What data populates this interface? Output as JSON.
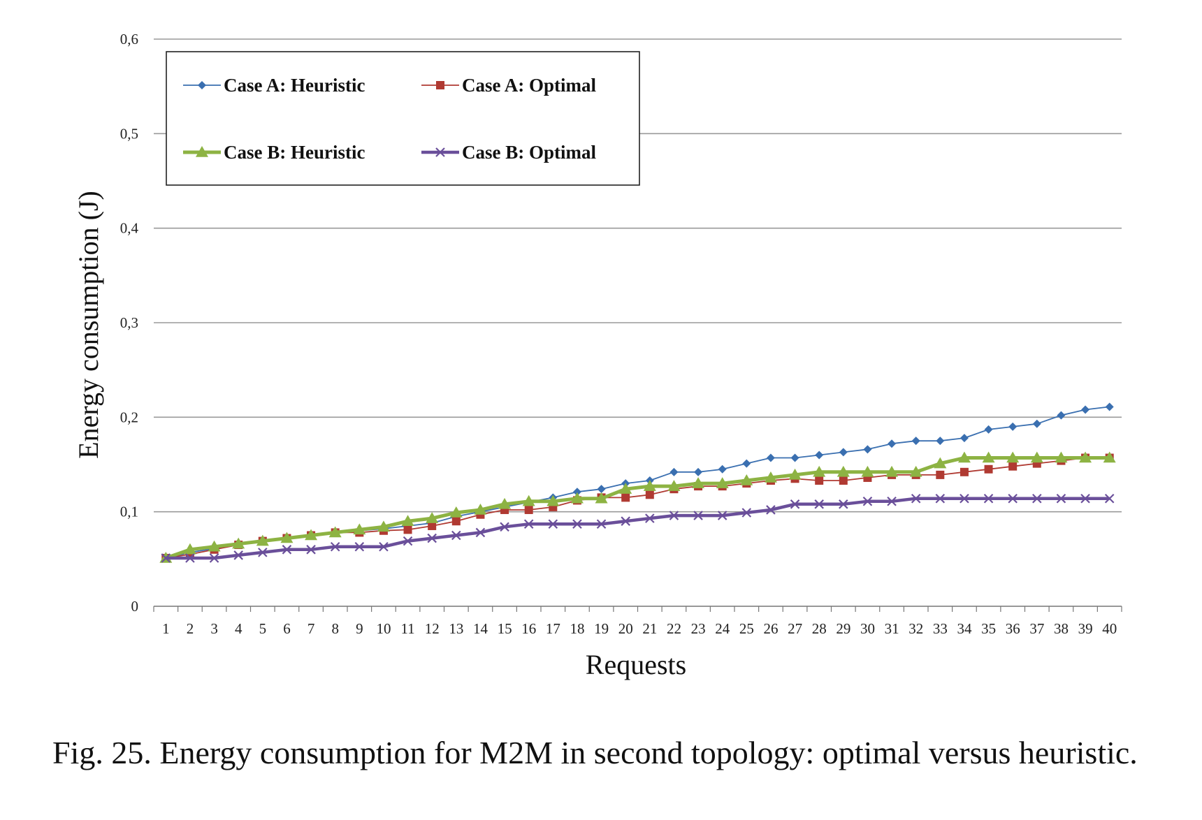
{
  "caption": "Fig. 25. Energy consumption for M2M in second topology: optimal versus heuristic.",
  "chart_data": {
    "type": "line",
    "title": "",
    "xlabel": "Requests",
    "ylabel": "Energy consumption (J)",
    "x": [
      1,
      2,
      3,
      4,
      5,
      6,
      7,
      8,
      9,
      10,
      11,
      12,
      13,
      14,
      15,
      16,
      17,
      18,
      19,
      20,
      21,
      22,
      23,
      24,
      25,
      26,
      27,
      28,
      29,
      30,
      31,
      32,
      33,
      34,
      35,
      36,
      37,
      38,
      39,
      40
    ],
    "ylim": [
      0,
      0.6
    ],
    "yticks": [
      0,
      0.1,
      0.2,
      0.3,
      0.4,
      0.5,
      0.6
    ],
    "ytick_labels": [
      "0",
      "0,1",
      "0,2",
      "0,3",
      "0,4",
      "0,5",
      "0,6"
    ],
    "grid": "horizontal",
    "legend_position": "top-left",
    "series": [
      {
        "name": "Case A: Heuristic",
        "color": "#3a6fb0",
        "marker": "diamond",
        "values": [
          0.051,
          0.057,
          0.061,
          0.066,
          0.069,
          0.072,
          0.075,
          0.078,
          0.08,
          0.082,
          0.085,
          0.088,
          0.095,
          0.1,
          0.105,
          0.11,
          0.115,
          0.121,
          0.124,
          0.13,
          0.133,
          0.142,
          0.142,
          0.145,
          0.151,
          0.157,
          0.157,
          0.16,
          0.163,
          0.166,
          0.172,
          0.175,
          0.175,
          0.178,
          0.187,
          0.19,
          0.193,
          0.202,
          0.208,
          0.211
        ]
      },
      {
        "name": "Case A: Optimal",
        "color": "#b03a32",
        "marker": "square",
        "values": [
          0.051,
          0.055,
          0.06,
          0.065,
          0.069,
          0.072,
          0.075,
          0.078,
          0.078,
          0.08,
          0.081,
          0.085,
          0.09,
          0.097,
          0.102,
          0.102,
          0.105,
          0.112,
          0.115,
          0.115,
          0.118,
          0.124,
          0.127,
          0.127,
          0.13,
          0.133,
          0.135,
          0.133,
          0.133,
          0.136,
          0.139,
          0.139,
          0.139,
          0.142,
          0.145,
          0.148,
          0.151,
          0.154,
          0.157,
          0.157
        ]
      },
      {
        "name": "Case B: Heuristic",
        "color": "#8db343",
        "marker": "triangle",
        "values": [
          0.051,
          0.06,
          0.063,
          0.066,
          0.069,
          0.072,
          0.075,
          0.078,
          0.081,
          0.084,
          0.09,
          0.093,
          0.099,
          0.102,
          0.108,
          0.111,
          0.111,
          0.114,
          0.114,
          0.124,
          0.127,
          0.127,
          0.13,
          0.13,
          0.133,
          0.136,
          0.139,
          0.142,
          0.142,
          0.142,
          0.142,
          0.142,
          0.151,
          0.157,
          0.157,
          0.157,
          0.157,
          0.157,
          0.157,
          0.157
        ]
      },
      {
        "name": "Case B: Optimal",
        "color": "#6a4f9a",
        "marker": "x",
        "values": [
          0.051,
          0.051,
          0.051,
          0.054,
          0.057,
          0.06,
          0.06,
          0.063,
          0.063,
          0.063,
          0.069,
          0.072,
          0.075,
          0.078,
          0.084,
          0.087,
          0.087,
          0.087,
          0.087,
          0.09,
          0.093,
          0.096,
          0.096,
          0.096,
          0.099,
          0.102,
          0.108,
          0.108,
          0.108,
          0.111,
          0.111,
          0.114,
          0.114,
          0.114,
          0.114,
          0.114,
          0.114,
          0.114,
          0.114,
          0.114
        ]
      }
    ]
  }
}
